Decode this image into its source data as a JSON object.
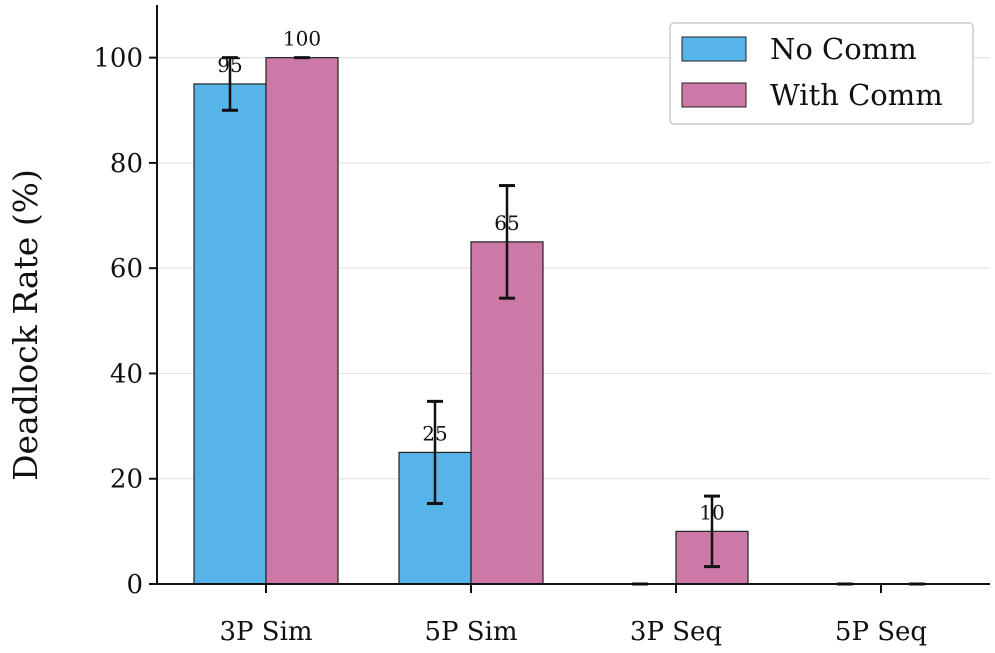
{
  "chart_data": {
    "type": "bar",
    "title": "",
    "xlabel": "",
    "ylabel": "Deadlock Rate (%)",
    "categories": [
      "3P Sim",
      "5P Sim",
      "3P Seq",
      "5P Seq"
    ],
    "ylim": [
      0,
      110
    ],
    "yticks": [
      0,
      20,
      40,
      60,
      80,
      100
    ],
    "grid": "horizontal",
    "legend_position": "top-right",
    "series": [
      {
        "name": "No Comm",
        "color": "#56B4E9",
        "values": [
          95,
          25,
          0,
          0
        ],
        "error": [
          5,
          9.7,
          0,
          0
        ],
        "labels": [
          "95",
          "25",
          "",
          ""
        ]
      },
      {
        "name": "With Comm",
        "color": "#CC79A7",
        "values": [
          100,
          65,
          10,
          0
        ],
        "error": [
          0,
          10.7,
          6.7,
          0
        ],
        "labels": [
          "100",
          "65",
          "10",
          ""
        ]
      }
    ]
  }
}
